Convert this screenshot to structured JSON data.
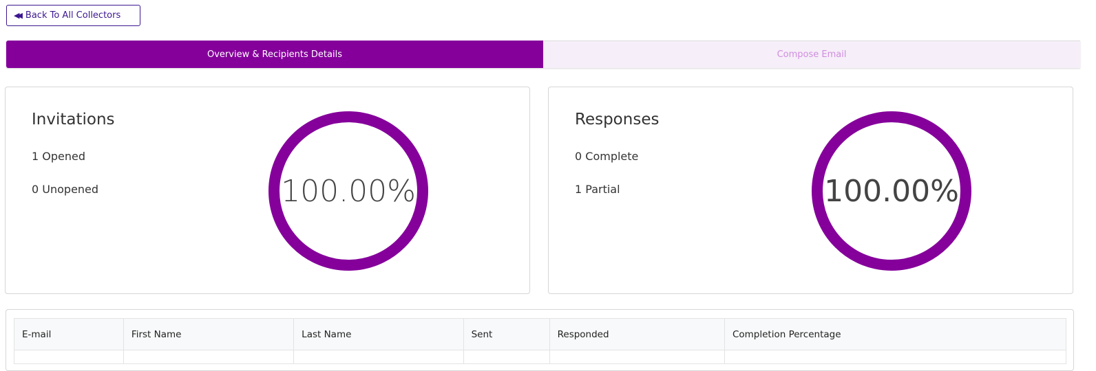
{
  "back_button": {
    "label": "Back To All Collectors",
    "icon": "double-chevron-left-icon"
  },
  "tabs": [
    {
      "label": "Overview & Recipients Details",
      "active": true
    },
    {
      "label": "Compose Email",
      "active": false
    }
  ],
  "invitations": {
    "title": "Invitations",
    "line1": "1 Opened",
    "line2": "0 Unopened",
    "percent": "100.00%",
    "fill": 100
  },
  "responses": {
    "title": "Responses",
    "line1": "0 Complete",
    "line2": "1 Partial",
    "percent": "100.00%",
    "fill": 100
  },
  "table": {
    "columns": [
      "E-mail",
      "First Name",
      "Last Name",
      "Sent",
      "Responded",
      "Completion Percentage"
    ]
  },
  "colors": {
    "accent": "#85009b",
    "tab_inactive_bg": "#f6eef8",
    "tab_inactive_text": "#cf8de0",
    "button_text": "#3b1690"
  }
}
